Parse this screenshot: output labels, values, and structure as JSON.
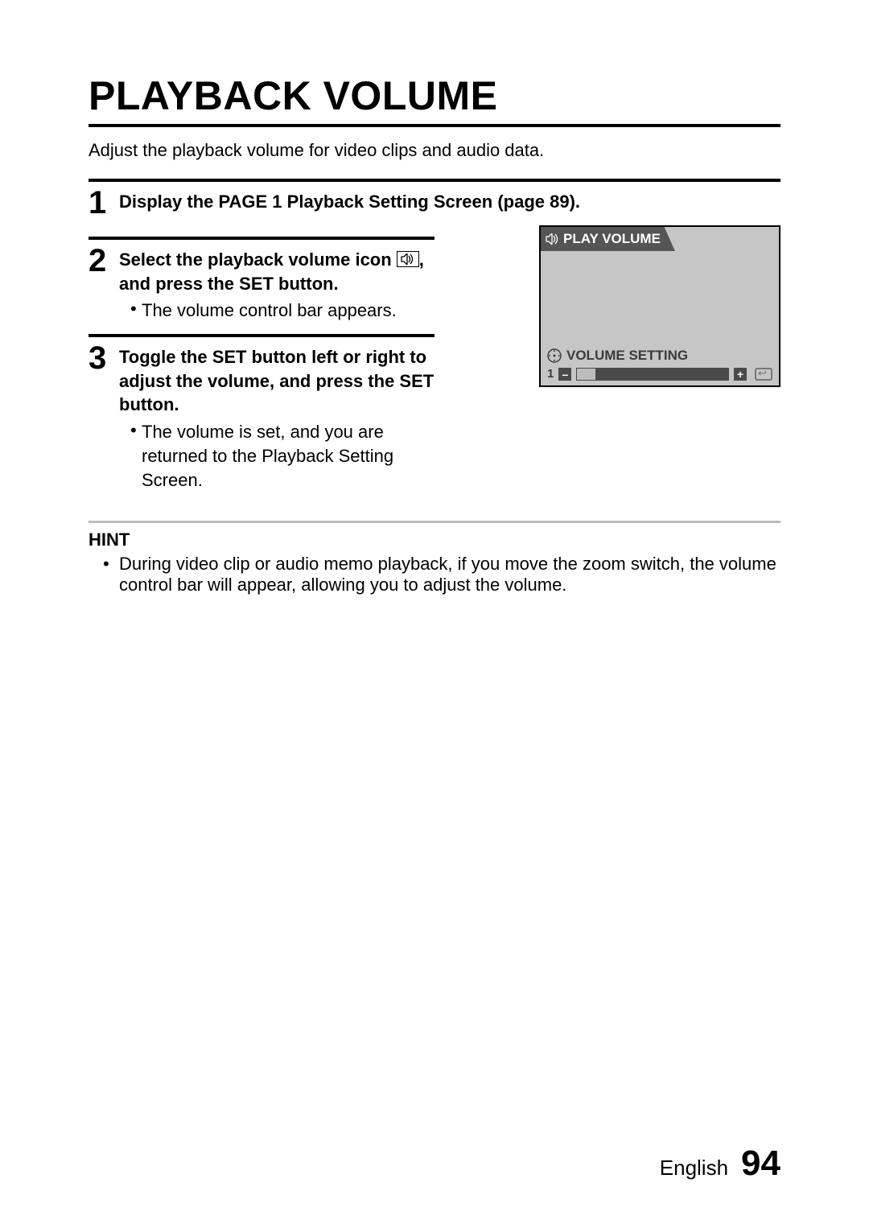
{
  "title": "PLAYBACK VOLUME",
  "intro": "Adjust the playback volume for video clips and audio data.",
  "steps": {
    "s1": {
      "num": "1",
      "head": "Display the PAGE 1 Playback Setting Screen (page 89)."
    },
    "s2": {
      "num": "2",
      "head_a": "Select the playback volume icon ",
      "head_b": ", and press the SET button.",
      "bullet": "The volume control bar appears."
    },
    "s3": {
      "num": "3",
      "head": "Toggle the SET button left or right to adjust the volume, and press the SET button.",
      "bullet": "The volume is set, and you are returned to the Playback Setting Screen."
    }
  },
  "screen": {
    "top_label": "PLAY VOLUME",
    "vol_label": "VOLUME SETTING",
    "vol_value": "1",
    "minus": "–",
    "plus": "+",
    "fill_percent": 12,
    "bg": "#c6c6c6",
    "header_bg": "#555555",
    "bar_bg": "#4a4a4a",
    "fill_color": "#bdbdbd",
    "text_color": "#3b3b3b"
  },
  "hint": {
    "title": "HINT",
    "item": "During video clip or audio memo playback, if you move the zoom switch, the volume control bar will appear, allowing you to adjust the volume."
  },
  "footer": {
    "lang": "English",
    "page": "94"
  }
}
